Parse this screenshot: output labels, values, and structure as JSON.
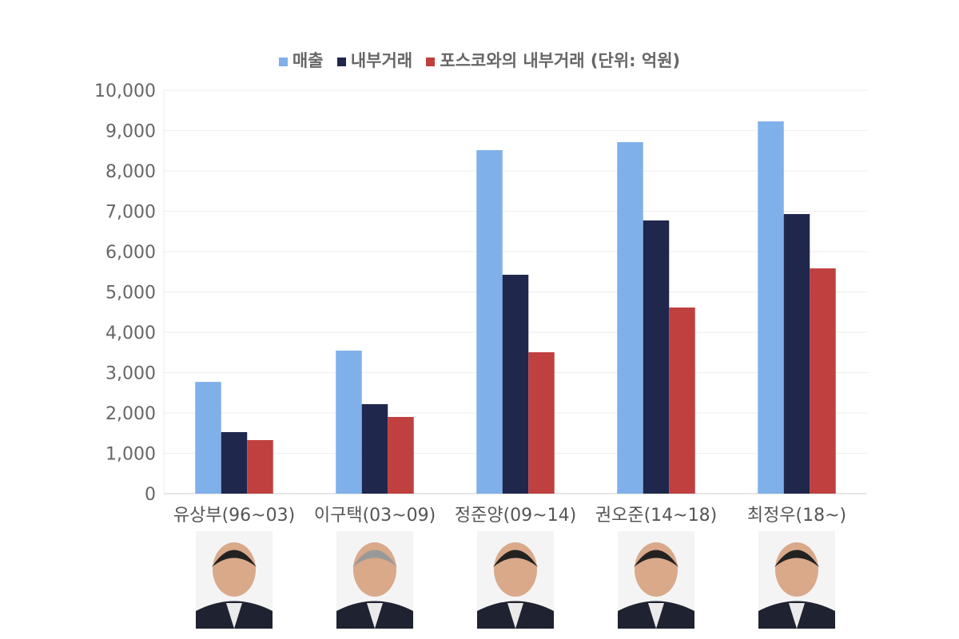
{
  "chart_data": {
    "type": "bar",
    "categories": [
      "유상부(96~03)",
      "이구택(03~09)",
      "정준양(09~14)",
      "권오준(14~18)",
      "최정우(18~)"
    ],
    "series": [
      {
        "name": "매출",
        "color": "#7fb0ea",
        "values": [
          2770,
          3545,
          8515,
          8713,
          9228
        ]
      },
      {
        "name": "내부거래",
        "color": "#1f274d",
        "values": [
          1525,
          2218,
          5426,
          6772,
          6931
        ]
      },
      {
        "name": "포스코와의 내부거래 (단위: 억원)",
        "color": "#c04040",
        "values": [
          1327,
          1901,
          3505,
          4614,
          5584
        ]
      }
    ],
    "ylim": [
      0,
      10000
    ],
    "yticks": [
      "0",
      "1,000",
      "2,000",
      "3,000",
      "4,000",
      "5,000",
      "6,000",
      "7,000",
      "8,000",
      "9,000",
      "10,000"
    ],
    "grid": true,
    "legend": "top-center"
  }
}
